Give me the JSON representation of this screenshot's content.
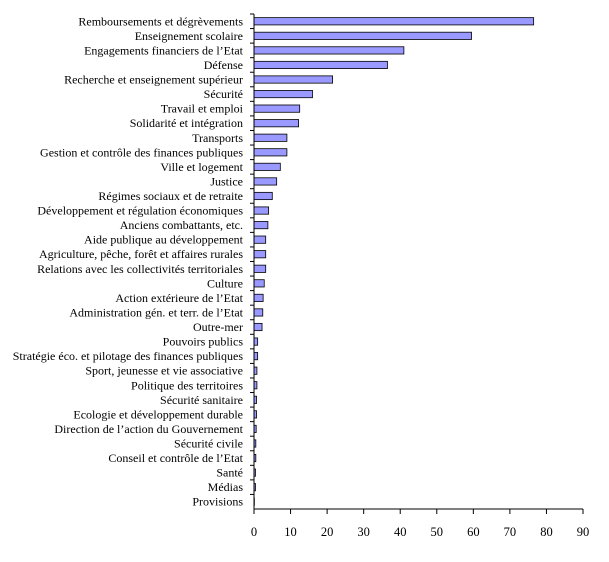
{
  "chart_data": {
    "type": "bar",
    "orientation": "horizontal",
    "title": "",
    "xlabel": "",
    "ylabel": "",
    "xlim": [
      0,
      90
    ],
    "xticks": [
      0,
      10,
      20,
      30,
      40,
      50,
      60,
      70,
      80,
      90
    ],
    "grid": false,
    "legend": "none",
    "bar_color": "#9999ff",
    "categories": [
      "Remboursements et dégrèvements",
      "Enseignement scolaire",
      "Engagements financiers de l’Etat",
      "Défense",
      "Recherche et enseignement supérieur",
      "Sécurité",
      "Travail et emploi",
      "Solidarité et intégration",
      "Transports",
      "Gestion et contrôle des finances publiques",
      "Ville et logement",
      "Justice",
      "Régimes sociaux et de retraite",
      "Développement et régulation économiques",
      "Anciens combattants, etc.",
      "Aide publique au développement",
      "Agriculture, pêche, forêt et affaires rurales",
      "Relations avec les collectivités territoriales",
      "Culture",
      "Action extérieure de l’Etat",
      "Administration gén. et terr. de l’Etat",
      "Outre-mer",
      "Pouvoirs publics",
      "Stratégie éco. et pilotage des finances publiques",
      "Sport, jeunesse et vie associative",
      "Politique des territoires",
      "Sécurité sanitaire",
      "Ecologie et développement durable",
      "Direction de l’action du Gouvernement",
      "Sécurité civile",
      "Conseil et contrôle de l’Etat",
      "Santé",
      "Médias",
      "Provisions"
    ],
    "values": [
      76.5,
      59.5,
      41,
      36.5,
      21.5,
      16,
      12.5,
      12.2,
      9,
      9,
      7.2,
      6.2,
      5,
      4,
      3.8,
      3.2,
      3.2,
      3.2,
      2.8,
      2.5,
      2.4,
      2.2,
      1,
      1,
      0.8,
      0.8,
      0.7,
      0.7,
      0.6,
      0.5,
      0.5,
      0.4,
      0.4,
      0.1
    ]
  }
}
